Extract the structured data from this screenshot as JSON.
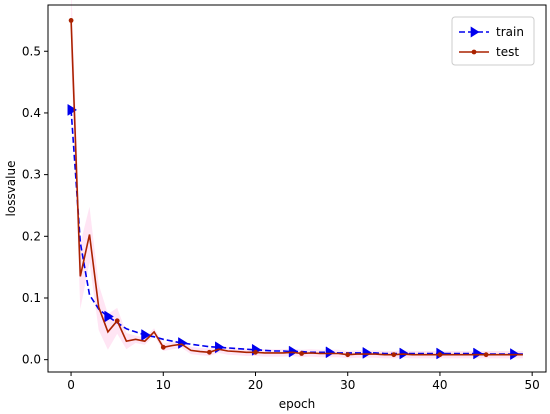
{
  "chart_data": {
    "type": "line",
    "title": "",
    "xlabel": "epoch",
    "ylabel": "lossvalue",
    "xlim": [
      -2.5,
      51.5
    ],
    "ylim": [
      -0.02,
      0.575
    ],
    "xticks": [
      0,
      10,
      20,
      30,
      40,
      50
    ],
    "yticks": [
      0.0,
      0.1,
      0.2,
      0.3,
      0.4,
      0.5
    ],
    "grid": false,
    "legend_position": "top-right",
    "series": [
      {
        "name": "train",
        "color": "#0000ee",
        "style": "dashed",
        "marker": "triangle-right",
        "x": [
          0,
          1,
          2,
          3,
          4,
          5,
          6,
          7,
          8,
          9,
          10,
          11,
          12,
          13,
          14,
          15,
          16,
          17,
          18,
          19,
          20,
          21,
          22,
          23,
          24,
          25,
          26,
          27,
          28,
          29,
          30,
          31,
          32,
          33,
          34,
          35,
          36,
          37,
          38,
          39,
          40,
          41,
          42,
          43,
          44,
          45,
          46,
          47,
          48,
          49
        ],
        "y": [
          0.405,
          0.19,
          0.105,
          0.082,
          0.07,
          0.06,
          0.05,
          0.045,
          0.04,
          0.037,
          0.033,
          0.03,
          0.027,
          0.025,
          0.023,
          0.021,
          0.02,
          0.019,
          0.018,
          0.017,
          0.016,
          0.015,
          0.014,
          0.014,
          0.013,
          0.013,
          0.012,
          0.012,
          0.012,
          0.011,
          0.011,
          0.011,
          0.011,
          0.011,
          0.01,
          0.01,
          0.01,
          0.01,
          0.01,
          0.01,
          0.01,
          0.01,
          0.01,
          0.01,
          0.01,
          0.009,
          0.009,
          0.009,
          0.009,
          0.009
        ]
      },
      {
        "name": "test",
        "color": "#aa2200",
        "style": "solid",
        "marker": "dot",
        "x": [
          0,
          1,
          2,
          3,
          4,
          5,
          6,
          7,
          8,
          9,
          10,
          11,
          12,
          13,
          14,
          15,
          16,
          17,
          18,
          19,
          20,
          21,
          22,
          23,
          24,
          25,
          26,
          27,
          28,
          29,
          30,
          31,
          32,
          33,
          34,
          35,
          36,
          37,
          38,
          39,
          40,
          41,
          42,
          43,
          44,
          45,
          46,
          47,
          48,
          49
        ],
        "y": [
          0.55,
          0.135,
          0.203,
          0.085,
          0.045,
          0.063,
          0.03,
          0.033,
          0.03,
          0.045,
          0.02,
          0.023,
          0.025,
          0.015,
          0.013,
          0.012,
          0.017,
          0.014,
          0.013,
          0.012,
          0.012,
          0.011,
          0.011,
          0.011,
          0.012,
          0.01,
          0.011,
          0.01,
          0.01,
          0.01,
          0.008,
          0.009,
          0.009,
          0.009,
          0.008,
          0.008,
          0.009,
          0.008,
          0.008,
          0.008,
          0.008,
          0.008,
          0.008,
          0.008,
          0.008,
          0.008,
          0.008,
          0.008,
          0.008,
          0.008
        ]
      }
    ]
  }
}
